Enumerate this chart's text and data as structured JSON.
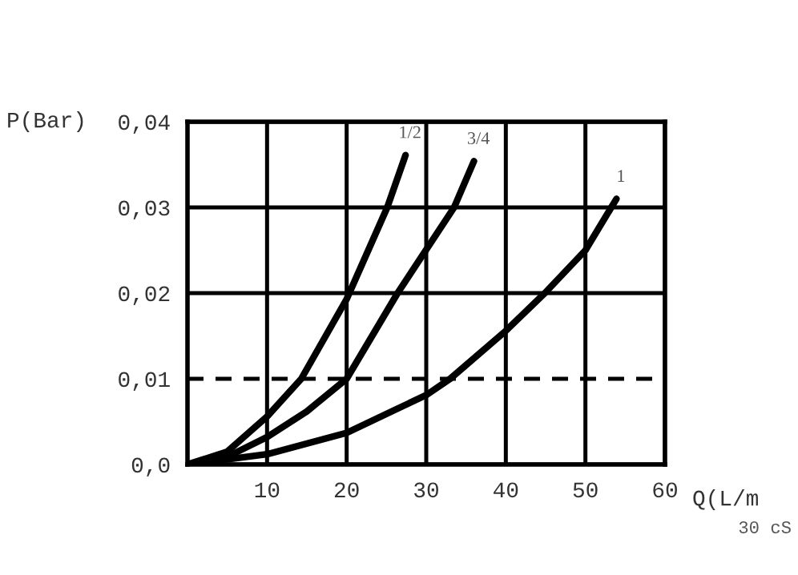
{
  "chart_data": {
    "type": "line",
    "xlabel": "Q(L/m",
    "ylabel": "P(Bar)",
    "annotations": [
      "30 cS"
    ],
    "xlim": [
      0,
      60
    ],
    "ylim": [
      0,
      0.04
    ],
    "xticks": [
      10,
      20,
      30,
      40,
      50,
      60
    ],
    "yticks": [
      {
        "value": 0,
        "label": "0,0"
      },
      {
        "value": 0.01,
        "label": "0,01"
      },
      {
        "value": 0.02,
        "label": "0,02"
      },
      {
        "value": 0.03,
        "label": "0,03"
      },
      {
        "value": 0.04,
        "label": "0,04"
      }
    ],
    "grid": true,
    "marker": "none",
    "line_style": "solid",
    "ref_lines": [
      {
        "axis": "y",
        "value": 0.01,
        "color": "#000000",
        "line_style": "dashed"
      }
    ],
    "series": [
      {
        "name": "1/2",
        "color": "#000000",
        "x": [
          0,
          5,
          10,
          14.3,
          20,
          25.1,
          27.4
        ],
        "values": [
          0,
          0.0015,
          0.0056,
          0.01,
          0.0193,
          0.03,
          0.0361
        ]
      },
      {
        "name": "3/4",
        "color": "#000000",
        "x": [
          0,
          5,
          10,
          15,
          20,
          26.4,
          33.5,
          36
        ],
        "values": [
          0,
          0.0009,
          0.0032,
          0.0062,
          0.01,
          0.02,
          0.03,
          0.0354
        ]
      },
      {
        "name": "1",
        "color": "#000000",
        "x": [
          0,
          10,
          20,
          30,
          33,
          40,
          44.9,
          50,
          53.9
        ],
        "values": [
          0,
          0.0012,
          0.0037,
          0.0081,
          0.01,
          0.0156,
          0.02,
          0.025,
          0.031
        ]
      }
    ]
  }
}
